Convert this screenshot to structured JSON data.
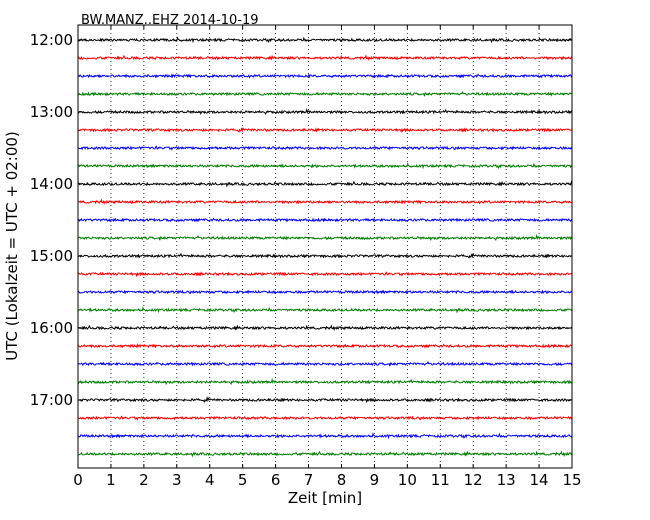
{
  "chart_data": {
    "type": "line",
    "title": "BW.MANZ..EHZ 2014-10-19",
    "xlabel": "Zeit  [min]",
    "ylabel": "UTC (Lokalzeit = UTC + 02:00)",
    "xlim": [
      0,
      15
    ],
    "xticks": [
      0,
      1,
      2,
      3,
      4,
      5,
      6,
      7,
      8,
      9,
      10,
      11,
      12,
      13,
      14,
      15
    ],
    "yticks": [
      "12:00",
      "13:00",
      "14:00",
      "15:00",
      "16:00",
      "17:00"
    ],
    "grid": "vertical dotted",
    "trace_colors": [
      "#000000",
      "#ff0000",
      "#0000ff",
      "#008000"
    ],
    "trace_start_times": [
      "12:00",
      "12:15",
      "12:30",
      "12:45",
      "13:00",
      "13:15",
      "13:30",
      "13:45",
      "14:00",
      "14:15",
      "14:30",
      "14:45",
      "15:00",
      "15:15",
      "15:30",
      "15:45",
      "16:00",
      "16:15",
      "16:30",
      "16:45",
      "17:00",
      "17:15",
      "17:30",
      "17:45"
    ],
    "trace_minutes_each": 15
  }
}
